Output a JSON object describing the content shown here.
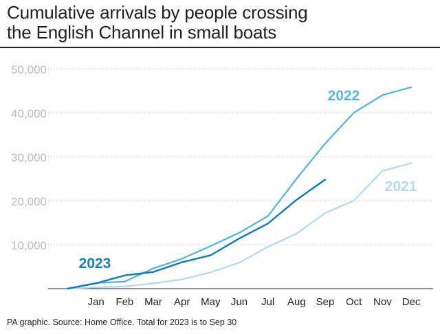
{
  "title_line1": "Cumulative arrivals by people crossing",
  "title_line2": "the English Channel in small boats",
  "footer": "PA graphic. Source: Home Office. Total for 2023 is to Sep 30",
  "chart_data": {
    "type": "line",
    "title": "Cumulative arrivals by people crossing the English Channel in small boats",
    "xlabel": "",
    "ylabel": "",
    "x_ticks": [
      "Jan",
      "Feb",
      "Mar",
      "Apr",
      "May",
      "Jun",
      "Jul",
      "Aug",
      "Sep",
      "Oct",
      "Nov",
      "Dec"
    ],
    "y_ticks": [
      "10,000",
      "20,000",
      "30,000",
      "40,000",
      "50,000"
    ],
    "y_tick_values": [
      10000,
      20000,
      30000,
      40000,
      50000
    ],
    "ylim": [
      0,
      50000
    ],
    "grid": "horizontal dotted",
    "x_origin": "start of January",
    "series": [
      {
        "name": "2022",
        "color": "#5ab4dc",
        "x": [
          0,
          1,
          2,
          3,
          4,
          5,
          6,
          7,
          8,
          9,
          10,
          11,
          12
        ],
        "values": [
          0,
          1300,
          1600,
          4600,
          6800,
          9700,
          12700,
          16500,
          25000,
          33000,
          40000,
          44000,
          45800
        ]
      },
      {
        "name": "2021",
        "color": "#b5daee",
        "x": [
          0,
          1,
          2,
          3,
          4,
          5,
          6,
          7,
          8,
          9,
          10,
          11,
          12
        ],
        "values": [
          0,
          300,
          500,
          1200,
          2100,
          3700,
          5900,
          9500,
          12500,
          17200,
          20000,
          26800,
          28500
        ]
      },
      {
        "name": "2023",
        "color": "#1a7db5",
        "x": [
          0,
          1,
          2,
          3,
          4,
          5,
          6,
          7,
          8,
          9
        ],
        "values": [
          0,
          1200,
          3000,
          3800,
          6000,
          7600,
          11400,
          14800,
          20200,
          24800
        ]
      }
    ]
  }
}
